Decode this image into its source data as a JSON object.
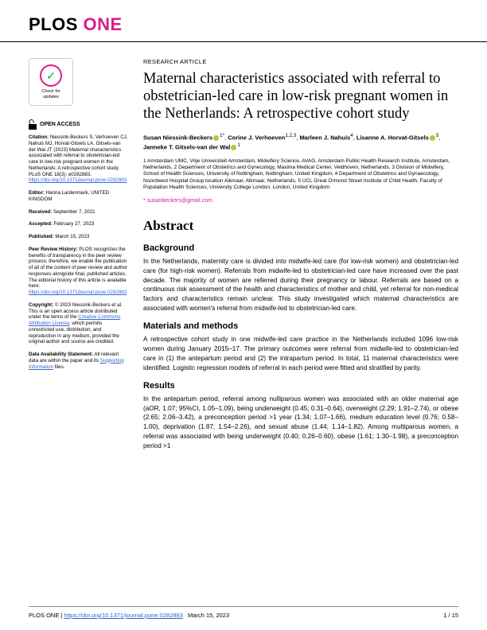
{
  "journal": {
    "logo_prefix": "PLOS ",
    "logo_suffix": "ONE"
  },
  "article": {
    "type": "RESEARCH ARTICLE",
    "title": "Maternal characteristics associated with referral to obstetrician-led care in low-risk pregnant women in the Netherlands: A retrospective cohort study",
    "authors_html": "Susan Niessink-Beckers",
    "author_list": [
      {
        "name": "Susan Niessink-Beckers",
        "orcid": true,
        "sup": "1*"
      },
      {
        "name": "Corine J. Verhoeven",
        "orcid": false,
        "sup": "1,2,3"
      },
      {
        "name": "Marleen J. Nahuis",
        "orcid": false,
        "sup": "4"
      },
      {
        "name": "Lisanne A. Horvat-Gitsels",
        "orcid": true,
        "sup": "5"
      },
      {
        "name": "Janneke T. Gitsels-van der Wal",
        "orcid": true,
        "sup": "1"
      }
    ],
    "affiliations": "1 Amsterdam UMC, Vrije Universiteit Amsterdam, Midwifery Science, AVAG, Amsterdam Public Health Research Institute, Amsterdam, Netherlands, 2 Department of Obstetrics and Gynecology, Maxima Medical Center, Veldhoven, Netherlands, 3 Division of Midwifery, School of Health Sciences, University of Nottingham, Nottingham, United Kingdom, 4 Department of Obstetrics and Gynaecology, Noordwest Hospital Group location Alkmaar, Alkmaar, Netherlands, 5 UCL Great Ormond Street Institute of Child Health, Faculty of Population Health Sciences, University College London, London, United Kingdom",
    "corresponding": "* susanbeckers@gmail.com"
  },
  "badge": {
    "line1": "Check for",
    "line2": "updates"
  },
  "sidebar": {
    "open_access": "OPEN ACCESS",
    "citation_label": "Citation:",
    "citation": " Niessink-Beckers S, Verhoeven CJ, Nahuis MJ, Horvat-Gitsels LA, Gitsels-van der Wal JT (2023) Maternal characteristics associated with referral to obstetrician-led care in low-risk pregnant women in the Netherlands: A retrospective cohort study. PLoS ONE 18(3): e0282883. ",
    "citation_link": "https://doi.org/10.1371/journal.pone.0282883",
    "editor_label": "Editor:",
    "editor": " Hanna Lardenmark, UNITED KINGDOM",
    "received_label": "Received:",
    "received": " September 7, 2021",
    "accepted_label": "Accepted:",
    "accepted": " February 27, 2023",
    "published_label": "Published:",
    "published": " March 15, 2023",
    "peer_label": "Peer Review History:",
    "peer": " PLOS recognizes the benefits of transparency in the peer review process; therefore, we enable the publication of all of the content of peer review and author responses alongside final, published articles. The editorial history of this article is available here: ",
    "peer_link": "https://doi.org/10.1371/journal.pone.0282883",
    "copyright_label": "Copyright:",
    "copyright_pre": " © 2023 Niessink-Beckers et al. This is an open access article distributed under the terms of the ",
    "copyright_link": "Creative Commons Attribution License",
    "copyright_post": ", which permits unrestricted use, distribution, and reproduction in any medium, provided the original author and source are credited.",
    "data_label": "Data Availability Statement:",
    "data_pre": " All relevant data are within the paper and its ",
    "data_link": "Supporting Information",
    "data_post": " files."
  },
  "abstract": {
    "heading": "Abstract",
    "background_title": "Background",
    "background": "In the Netherlands, maternity care is divided into midwife-led care (for low-risk women) and obstetrician-led care (for high-risk women). Referrals from midwife-led to obstetrician-led care have increased over the past decade. The majority of women are referred during their pregnancy or labour. Referrals are based on a continuous risk assessment of the health and characteristics of mother and child, yet referral for non-medical factors and characteristics remain unclear. This study investigated which maternal characteristics are associated with women's referral from midwife-led to obstetrician-led care.",
    "methods_title": "Materials and methods",
    "methods": "A retrospective cohort study in one midwife-led care practice in the Netherlands included 1096 low-risk women during January 2015–17. The primary outcomes were referral from midwife-led to obstetrician-led care in (1) the antepartum period and (2) the intrapartum period. In total, 11 maternal characteristics were identified. Logistic regression models of referral in each period were fitted and stratified by parity.",
    "results_title": "Results",
    "results": "In the antepartum period, referral among nulliparous women was associated with an older maternal age (aOR, 1.07; 95%CI, 1.05–1.09), being underweight (0.45; 0.31–0.64), overweight (2.29; 1.91–2.74), or obese (2.65; 2.06–3.42), a preconception period >1 year (1.34; 1.07–1.66), medium education level (0.76; 0.58–1.00), deprivation (1.87; 1.54–2.26), and sexual abuse (1.44; 1.14–1.82). Among multiparous women, a referral was associated with being underweight (0.40; 0.26–0.60), obese (1.61; 1.30–1.98), a preconception period >1"
  },
  "footer": {
    "journal": "PLOS ONE | ",
    "doi": "https://doi.org/10.1371/journal.pone.0282883",
    "date": "March 15, 2023",
    "page": "1 / 15"
  }
}
